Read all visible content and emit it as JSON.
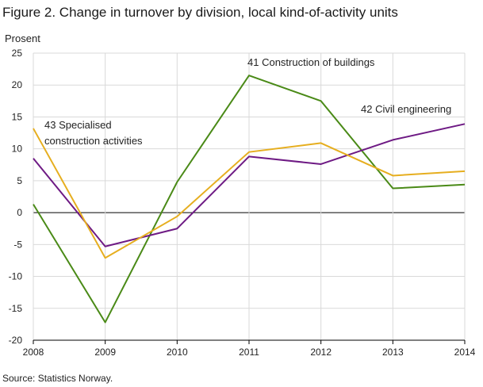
{
  "title": "Figure 2. Change in turnover by division, local kind-of-activity units",
  "source": "Source: Statistics Norway.",
  "chart_data": {
    "type": "line",
    "ylabel": "Prosent",
    "xlabel": "",
    "x": [
      "2008",
      "2009",
      "2010",
      "2011",
      "2012",
      "2013",
      "2014"
    ],
    "ylim": [
      -20,
      25
    ],
    "yticks": [
      "25",
      "20",
      "15",
      "10",
      "5",
      "0",
      "-5",
      "-10",
      "-15",
      "-20"
    ],
    "grid": true,
    "legend": "none (series labelled directly on chart)",
    "series": [
      {
        "name": "41 Construction of buildings",
        "color": "#4a8a17",
        "values": [
          1.3,
          -17.2,
          4.8,
          21.5,
          17.5,
          3.8,
          4.4
        ]
      },
      {
        "name": "42 Civil engineering",
        "color": "#6e1a84",
        "values": [
          8.5,
          -5.3,
          -2.5,
          8.8,
          7.6,
          11.4,
          13.9
        ]
      },
      {
        "name": "43 Specialised construction activities",
        "color": "#e6ae1f",
        "values": [
          13.2,
          -7.1,
          -0.6,
          9.5,
          10.9,
          5.8,
          6.5
        ]
      }
    ],
    "annotations": [
      {
        "series": 0,
        "lines": [
          "41 Construction of buildings"
        ]
      },
      {
        "series": 1,
        "lines": [
          "42 Civil engineering"
        ]
      },
      {
        "series": 2,
        "lines": [
          "43 Specialised",
          "construction activities"
        ]
      }
    ]
  }
}
